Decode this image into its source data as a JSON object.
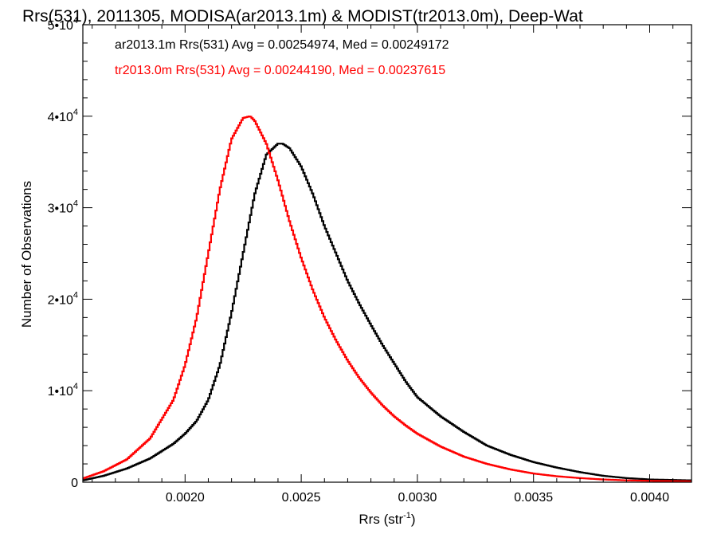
{
  "chart_data": {
    "type": "line",
    "title": "Rrs(531), 2011305, MODISA(ar2013.1m) & MODIST(tr2013.0m), Deep-Wat",
    "xlabel": "Rrs (str",
    "xlabel_sup": "-1",
    "xlabel_close": ")",
    "ylabel": "Number of Observations",
    "xlim": [
      0.00156,
      0.00418
    ],
    "ylim": [
      0,
      50000
    ],
    "xticks": [
      {
        "value": 0.002,
        "label": "0.0020"
      },
      {
        "value": 0.0025,
        "label": "0.0025"
      },
      {
        "value": 0.003,
        "label": "0.0030"
      },
      {
        "value": 0.0035,
        "label": "0.0035"
      },
      {
        "value": 0.004,
        "label": "0.0040"
      }
    ],
    "yticks": [
      {
        "value": 0,
        "label": "0",
        "sup": ""
      },
      {
        "value": 10000,
        "label": "1•10",
        "sup": "4"
      },
      {
        "value": 20000,
        "label": "2•10",
        "sup": "4"
      },
      {
        "value": 30000,
        "label": "3•10",
        "sup": "4"
      },
      {
        "value": 40000,
        "label": "4•10",
        "sup": "4"
      },
      {
        "value": 50000,
        "label": "5•10",
        "sup": "4"
      }
    ],
    "grid": false,
    "legend_position": "top-left",
    "series": [
      {
        "name": "ar2013.1m",
        "legend": "ar2013.1m Rrs(531) Avg = 0.00254974, Med = 0.00249172",
        "color": "#000000",
        "x": [
          0.00156,
          0.00165,
          0.00175,
          0.00185,
          0.00195,
          0.002,
          0.00205,
          0.0021,
          0.00215,
          0.0022,
          0.00225,
          0.0023,
          0.00235,
          0.0024,
          0.00242,
          0.00245,
          0.0025,
          0.00255,
          0.0026,
          0.00265,
          0.0027,
          0.00275,
          0.0028,
          0.00285,
          0.0029,
          0.00295,
          0.003,
          0.0031,
          0.0032,
          0.0033,
          0.0034,
          0.0035,
          0.0036,
          0.0037,
          0.0038,
          0.0039,
          0.004,
          0.00418
        ],
        "y": [
          200,
          700,
          1500,
          2600,
          4200,
          5300,
          6700,
          9000,
          12800,
          18500,
          25000,
          31500,
          35800,
          37000,
          37000,
          36500,
          34500,
          31500,
          28000,
          25000,
          22000,
          19500,
          17200,
          15000,
          13000,
          11000,
          9300,
          7200,
          5500,
          4000,
          3000,
          2200,
          1600,
          1100,
          700,
          450,
          300,
          200
        ]
      },
      {
        "name": "tr2013.0m",
        "legend": "tr2013.0m Rrs(531) Avg = 0.00244190, Med = 0.00237615",
        "color": "#ff0000",
        "x": [
          0.00156,
          0.00165,
          0.00175,
          0.00185,
          0.00195,
          0.002,
          0.00205,
          0.0021,
          0.00215,
          0.0022,
          0.00225,
          0.00228,
          0.0023,
          0.00235,
          0.0024,
          0.00245,
          0.0025,
          0.00255,
          0.0026,
          0.00265,
          0.0027,
          0.00275,
          0.0028,
          0.00285,
          0.0029,
          0.00295,
          0.003,
          0.0031,
          0.0032,
          0.0033,
          0.0034,
          0.0035,
          0.0036,
          0.0037,
          0.0038,
          0.0039,
          0.004,
          0.00418
        ],
        "y": [
          400,
          1200,
          2500,
          4800,
          9000,
          12800,
          18000,
          25000,
          32000,
          37500,
          39800,
          40000,
          39500,
          37000,
          33000,
          28500,
          24500,
          21000,
          18000,
          15500,
          13300,
          11400,
          9800,
          8400,
          7200,
          6200,
          5300,
          3900,
          2800,
          2000,
          1400,
          950,
          650,
          450,
          300,
          200,
          150,
          100
        ]
      }
    ]
  }
}
